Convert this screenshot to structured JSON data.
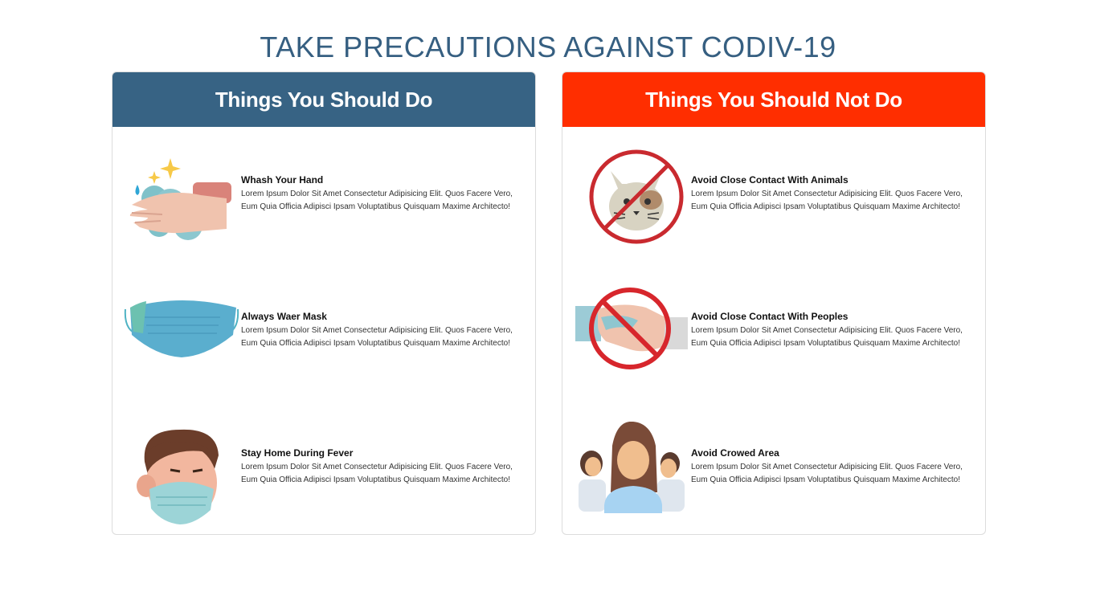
{
  "page": {
    "title": "TAKE PRECAUTIONS AGAINST CODIV-19"
  },
  "colors": {
    "do_header": "#376384",
    "dont_header": "#ff2e00",
    "title": "#365f81"
  },
  "do_card": {
    "title": "Things You Should Do",
    "items": [
      {
        "icon": "hand-washing-icon",
        "heading": "Whash Your Hand",
        "body": "Lorem Ipsum Dolor Sit Amet Consectetur Adipisicing Elit. Quos Facere Vero, Eum Quia Officia Adipisci Ipsam Voluptatibus Quisquam Maxime Architecto!"
      },
      {
        "icon": "face-mask-icon",
        "heading": "Always Waer Mask",
        "body": "Lorem Ipsum Dolor Sit Amet Consectetur Adipisicing Elit. Quos Facere Vero, Eum Quia Officia Adipisci Ipsam Voluptatibus Quisquam Maxime Architecto!"
      },
      {
        "icon": "masked-person-icon",
        "heading": "Stay Home During Fever",
        "body": "Lorem Ipsum Dolor Sit Amet Consectetur Adipisicing Elit. Quos Facere Vero, Eum Quia Officia Adipisci Ipsam Voluptatibus Quisquam Maxime Architecto!"
      }
    ]
  },
  "dont_card": {
    "title": "Things You Should Not Do",
    "items": [
      {
        "icon": "no-animal-contact-icon",
        "heading": "Avoid Close Contact With Animals",
        "body": "Lorem Ipsum Dolor Sit Amet Consectetur Adipisicing Elit. Quos Facere Vero, Eum Quia Officia Adipisci Ipsam Voluptatibus Quisquam Maxime Architecto!"
      },
      {
        "icon": "no-handshake-icon",
        "heading": "Avoid Close Contact With Peoples",
        "body": "Lorem Ipsum Dolor Sit Amet Consectetur Adipisicing Elit. Quos Facere Vero, Eum Quia Officia Adipisci Ipsam Voluptatibus Quisquam Maxime Architecto!"
      },
      {
        "icon": "crowd-icon",
        "heading": "Avoid Crowed Area",
        "body": "Lorem Ipsum Dolor Sit Amet Consectetur Adipisicing Elit. Quos Facere Vero, Eum Quia Officia Adipisci Ipsam Voluptatibus Quisquam Maxime Architecto!"
      }
    ]
  }
}
